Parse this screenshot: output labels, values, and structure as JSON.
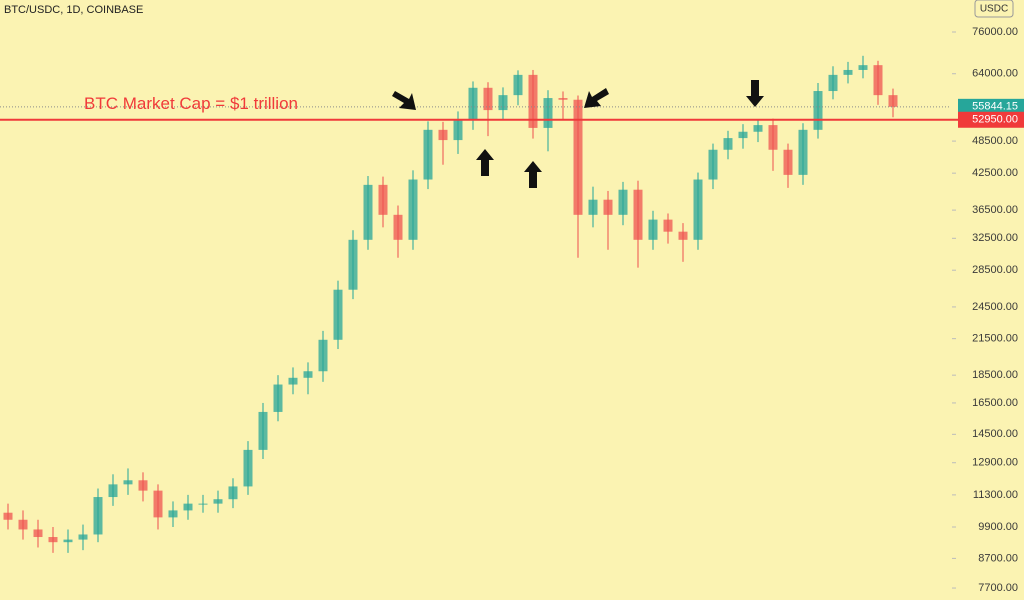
{
  "chart_data": {
    "type": "candlestick",
    "title": "BTC/USDC, 1D, COINBASE",
    "currency": "USDC",
    "log_scale": true,
    "ylim": [
      7330,
      86700
    ],
    "yticks": [
      {
        "value": 76000,
        "label": "76000.00"
      },
      {
        "value": 64000,
        "label": "64000.00"
      },
      {
        "value": 48500,
        "label": "48500.00"
      },
      {
        "value": 42500,
        "label": "42500.00"
      },
      {
        "value": 36500,
        "label": "36500.00"
      },
      {
        "value": 32500,
        "label": "32500.00"
      },
      {
        "value": 28500,
        "label": "28500.00"
      },
      {
        "value": 24500,
        "label": "24500.00"
      },
      {
        "value": 21500,
        "label": "21500.00"
      },
      {
        "value": 18500,
        "label": "18500.00"
      },
      {
        "value": 16500,
        "label": "16500.00"
      },
      {
        "value": 14500,
        "label": "14500.00"
      },
      {
        "value": 12900,
        "label": "12900.00"
      },
      {
        "value": 11300,
        "label": "11300.00"
      },
      {
        "value": 9900,
        "label": "9900.00"
      },
      {
        "value": 8700,
        "label": "8700.00"
      },
      {
        "value": 7700,
        "label": "7700.00"
      }
    ],
    "up_color": "#26a69a",
    "down_color": "#ef5350",
    "open": [
      10500,
      10200,
      9800,
      9500,
      9300,
      9400,
      9600,
      11200,
      11800,
      12000,
      11500,
      10300,
      10600,
      10900,
      10900,
      11100,
      11700,
      13600,
      15900,
      17800,
      18300,
      18800,
      21400,
      26300,
      32300,
      40500,
      35800,
      32300,
      41400,
      50800,
      48700,
      52900,
      60400,
      55100,
      58600,
      63700,
      51200,
      57900,
      57500,
      35800,
      38100,
      35800,
      39700,
      32300,
      35100,
      33400,
      32300,
      41400,
      46800,
      49100,
      50400,
      51800,
      46800,
      42200,
      50800,
      59600,
      63700,
      65000,
      66300,
      58600
    ],
    "high": [
      10900,
      10600,
      10200,
      9900,
      9800,
      10000,
      11600,
      12300,
      12600,
      12400,
      11800,
      11000,
      11300,
      11300,
      11500,
      12100,
      14100,
      16500,
      18500,
      19100,
      19500,
      22200,
      27300,
      33600,
      42000,
      41900,
      37200,
      43000,
      52600,
      52500,
      54800,
      62000,
      61800,
      60500,
      64900,
      65000,
      59800,
      59500,
      58500,
      40200,
      39500,
      41000,
      41200,
      36400,
      36000,
      34600,
      42600,
      48000,
      50600,
      52000,
      53000,
      53200,
      48000,
      52200,
      61600,
      66000,
      67200,
      68900,
      67500,
      60200
    ],
    "low": [
      9800,
      9400,
      9100,
      8900,
      8900,
      9000,
      9300,
      10800,
      11300,
      11000,
      9800,
      9900,
      10200,
      10500,
      10500,
      10700,
      11300,
      13100,
      15300,
      17100,
      17100,
      18000,
      20600,
      25300,
      31000,
      34000,
      30000,
      31000,
      39800,
      44000,
      46000,
      50800,
      49500,
      53000,
      56200,
      49000,
      46500,
      53000,
      30000,
      34000,
      31000,
      34300,
      28800,
      31000,
      31800,
      29500,
      31000,
      39800,
      45000,
      47000,
      48300,
      42900,
      40000,
      40500,
      49000,
      57600,
      61500,
      62800,
      56300,
      53500
    ],
    "close": [
      10200,
      9800,
      9500,
      9300,
      9400,
      9600,
      11200,
      11800,
      12000,
      11500,
      10300,
      10600,
      10900,
      10900,
      11100,
      11700,
      13600,
      15900,
      17800,
      18300,
      18800,
      21400,
      26300,
      32300,
      40500,
      35800,
      32300,
      41400,
      50800,
      48700,
      52900,
      60400,
      55100,
      58600,
      63700,
      51200,
      57900,
      57500,
      35800,
      38100,
      35800,
      39700,
      32300,
      35100,
      33400,
      32300,
      41400,
      46800,
      49100,
      50400,
      51800,
      46800,
      42200,
      50800,
      59600,
      63700,
      65000,
      66300,
      58600,
      55844.15
    ],
    "last_price": {
      "value": 55844.15,
      "color": "#26a69a"
    },
    "reference_line": {
      "value": 52950,
      "label": "52950.00",
      "text": "BTC Market Cap = $1 trillion",
      "color": "#f03a3a"
    }
  }
}
